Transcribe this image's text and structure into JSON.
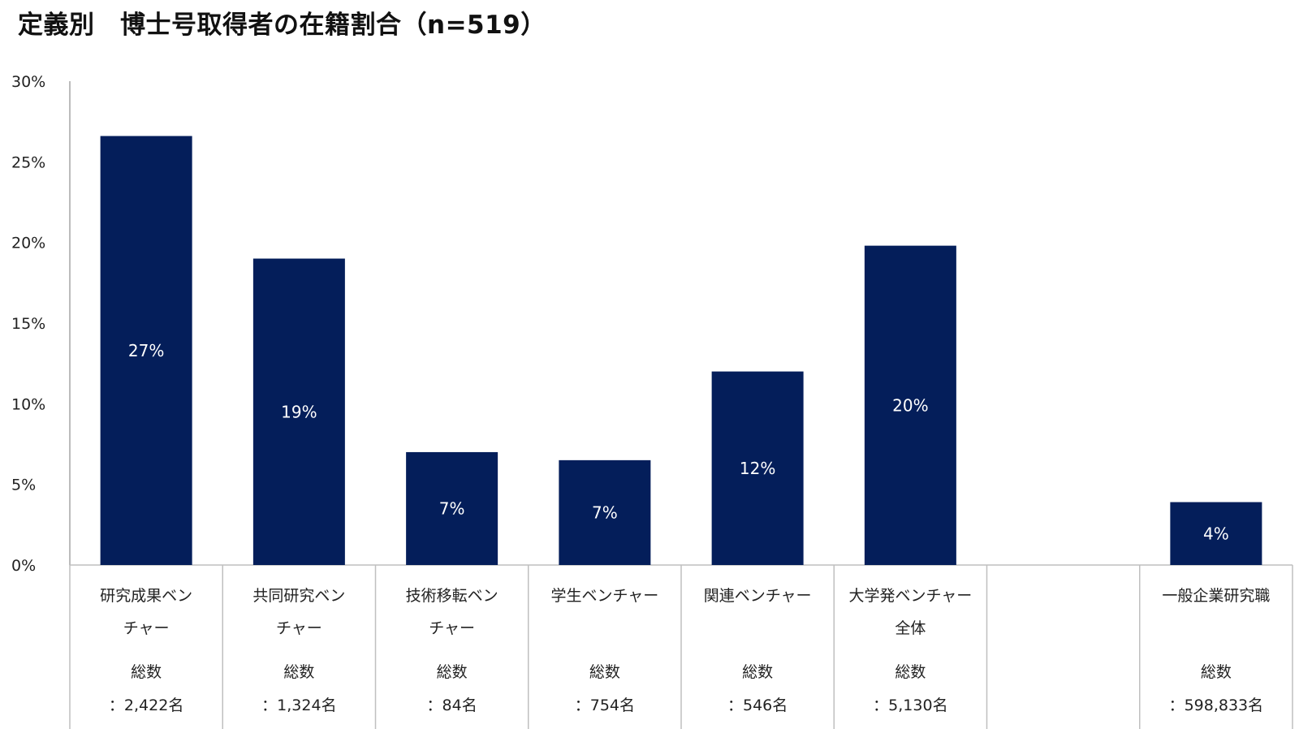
{
  "chart_data": {
    "type": "bar",
    "title": "定義別　博士号取得者の在籍割合（n=519）",
    "ylim": [
      0,
      30
    ],
    "y_ticks": [
      "0%",
      "5%",
      "10%",
      "15%",
      "20%",
      "25%",
      "30%"
    ],
    "bar_color": "#041E5A",
    "categories": [
      {
        "label_lines": [
          "研究成果ベン",
          "チャー"
        ],
        "count_lines": [
          "総数",
          "：2,422名"
        ],
        "value": 26.6,
        "value_label": "27%"
      },
      {
        "label_lines": [
          "共同研究ベン",
          "チャー"
        ],
        "count_lines": [
          "総数",
          "：1,324名"
        ],
        "value": 19.0,
        "value_label": "19%"
      },
      {
        "label_lines": [
          "技術移転ベン",
          "チャー"
        ],
        "count_lines": [
          "総数",
          "：84名"
        ],
        "value": 7.0,
        "value_label": "7%"
      },
      {
        "label_lines": [
          "学生ベンチャー"
        ],
        "count_lines": [
          "総数",
          "：754名"
        ],
        "value": 6.5,
        "value_label": "7%"
      },
      {
        "label_lines": [
          "関連ベンチャー"
        ],
        "count_lines": [
          "総数",
          "：546名"
        ],
        "value": 12.0,
        "value_label": "12%"
      },
      {
        "label_lines": [
          "大学発ベンチャー",
          "全体"
        ],
        "count_lines": [
          "総数",
          "：5,130名"
        ],
        "value": 19.8,
        "value_label": "20%"
      },
      {
        "label_lines": [],
        "count_lines": [],
        "value": null,
        "value_label": ""
      },
      {
        "label_lines": [
          "一般企業研究職"
        ],
        "count_lines": [
          "総数",
          "：598,833名"
        ],
        "value": 3.9,
        "value_label": "4%"
      }
    ]
  }
}
